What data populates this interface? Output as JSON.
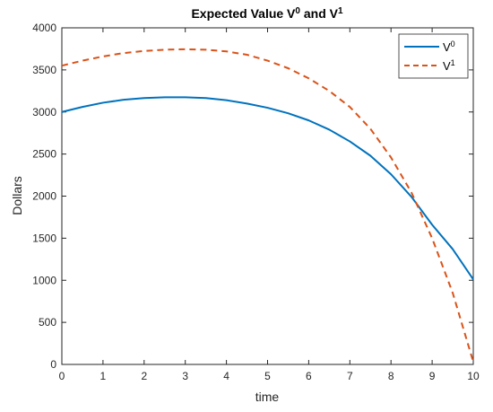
{
  "chart_data": {
    "type": "line",
    "title": {
      "prefix": "Expected Value V",
      "sup1": "0",
      "middle": " and V",
      "sup2": "1"
    },
    "xlabel": "time",
    "ylabel": "Dollars",
    "xlim": [
      0,
      10
    ],
    "ylim": [
      0,
      4000
    ],
    "xticks": [
      "0",
      "1",
      "2",
      "3",
      "4",
      "5",
      "6",
      "7",
      "8",
      "9",
      "10"
    ],
    "yticks": [
      "0",
      "500",
      "1000",
      "1500",
      "2000",
      "2500",
      "3000",
      "3500",
      "4000"
    ],
    "grid": false,
    "legend_position": "top-right",
    "series": [
      {
        "name": "V",
        "name_sup": "0",
        "style": "solid",
        "color": "#0072BD",
        "x": [
          0,
          0.5,
          1,
          1.5,
          2,
          2.5,
          3,
          3.5,
          4,
          4.5,
          5,
          5.5,
          6,
          6.5,
          7,
          7.5,
          8,
          8.5,
          9,
          9.5,
          10
        ],
        "y": [
          3000,
          3060,
          3110,
          3145,
          3165,
          3175,
          3175,
          3165,
          3140,
          3100,
          3050,
          2985,
          2900,
          2790,
          2650,
          2480,
          2260,
          1990,
          1660,
          1370,
          1010
        ]
      },
      {
        "name": "V",
        "name_sup": "1",
        "style": "dashed",
        "color": "#D95319",
        "x": [
          0,
          0.5,
          1,
          1.5,
          2,
          2.5,
          3,
          3.5,
          4,
          4.5,
          5,
          5.5,
          6,
          6.5,
          7,
          7.5,
          8,
          8.5,
          9,
          9.5,
          10
        ],
        "y": [
          3550,
          3610,
          3660,
          3700,
          3725,
          3740,
          3745,
          3740,
          3720,
          3680,
          3610,
          3520,
          3400,
          3250,
          3060,
          2800,
          2460,
          2040,
          1500,
          850,
          30
        ]
      }
    ]
  }
}
